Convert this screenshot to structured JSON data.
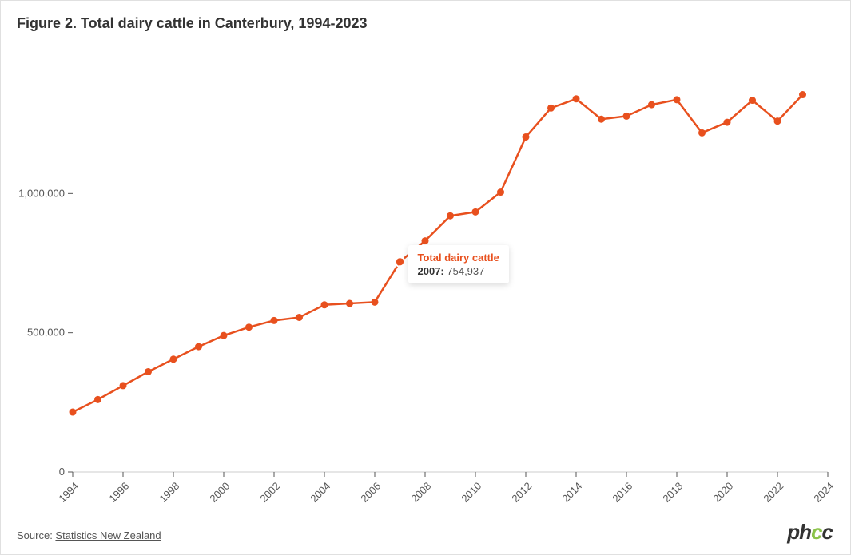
{
  "title": "Figure 2. Total dairy cattle in Canterbury, 1994-2023",
  "source_label": "Source: ",
  "source_name": "Statistics New Zealand",
  "brand": "phcc",
  "chart": {
    "type": "line",
    "series_name": "Total dairy cattle",
    "line_color": "#e8501e",
    "marker_color": "#e8501e",
    "line_width": 2.5,
    "marker_radius": 4.5,
    "background_color": "#ffffff",
    "axis_color": "#555555",
    "axis_fontsize": 13,
    "title_fontsize": 18,
    "title_color": "#333333",
    "xlim": [
      1994,
      2024
    ],
    "ylim": [
      0,
      1500000
    ],
    "yticks": [
      0,
      500000,
      1000000
    ],
    "xticks": [
      1994,
      1996,
      1998,
      2000,
      2002,
      2004,
      2006,
      2008,
      2010,
      2012,
      2014,
      2016,
      2018,
      2020,
      2022,
      2024
    ],
    "years": [
      1994,
      1995,
      1996,
      1997,
      1998,
      1999,
      2000,
      2001,
      2002,
      2003,
      2004,
      2005,
      2006,
      2007,
      2008,
      2009,
      2010,
      2011,
      2012,
      2013,
      2014,
      2015,
      2016,
      2017,
      2018,
      2019,
      2020,
      2021,
      2022,
      2023
    ],
    "values": [
      215000,
      260000,
      310000,
      360000,
      405000,
      450000,
      490000,
      520000,
      544000,
      555000,
      600000,
      605000,
      610000,
      754937,
      830000,
      920000,
      934000,
      1005000,
      1203000,
      1307000,
      1340000,
      1267000,
      1278000,
      1319000,
      1337000,
      1218000,
      1256000,
      1335000,
      1260000,
      1355000
    ]
  },
  "tooltip": {
    "title": "Total dairy cattle",
    "year": 2007,
    "value": 754937,
    "value_fmt": "754,937",
    "year_label": "2007:"
  }
}
